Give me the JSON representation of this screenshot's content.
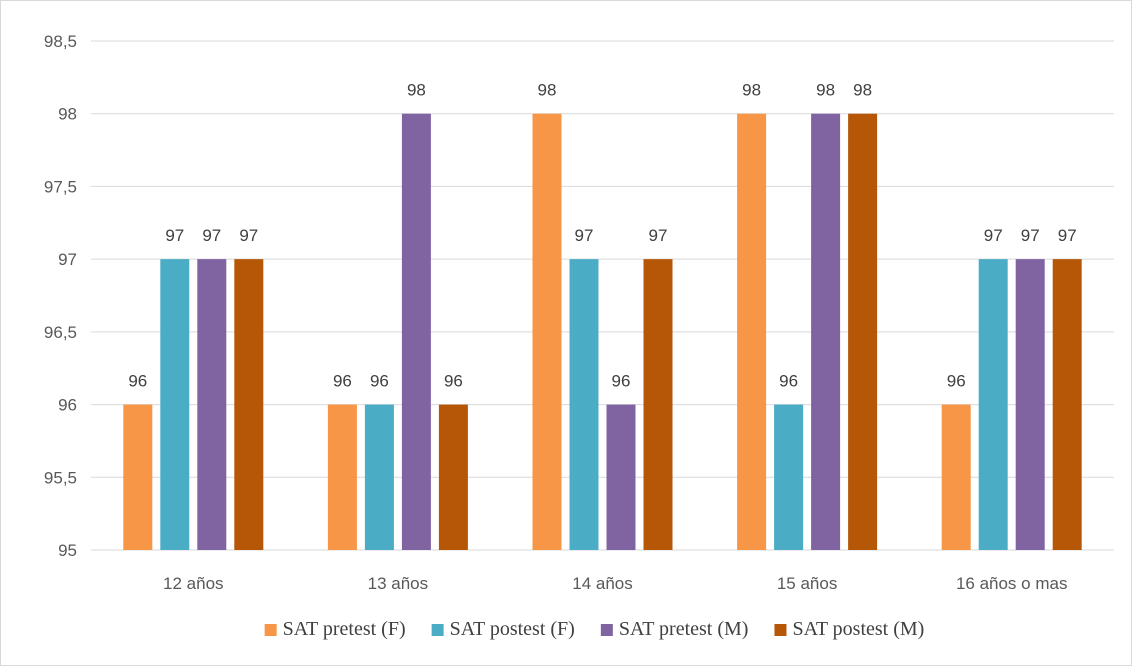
{
  "chart_data": {
    "type": "bar",
    "title": "",
    "xlabel": "",
    "ylabel": "",
    "categories": [
      "12 años",
      "13 años",
      "14 años",
      "15 años",
      "16 años o mas"
    ],
    "series": [
      {
        "name": "SAT pretest (F)",
        "color": "#F79646",
        "values": [
          96,
          96,
          98,
          98,
          96
        ]
      },
      {
        "name": "SAT postest (F)",
        "color": "#4BACC6",
        "values": [
          97,
          96,
          97,
          96,
          97
        ]
      },
      {
        "name": "SAT pretest (M)",
        "color": "#8064A2",
        "values": [
          97,
          98,
          96,
          98,
          97
        ]
      },
      {
        "name": "SAT postest (M)",
        "color": "#B65708",
        "values": [
          97,
          96,
          97,
          98,
          97
        ]
      }
    ],
    "ylim": [
      95,
      98.5
    ],
    "yticks": [
      "95",
      "95,5",
      "96",
      "96,5",
      "97",
      "97,5",
      "98",
      "98,5"
    ],
    "grid": true,
    "legend_position": "bottom",
    "data_labels": true
  }
}
